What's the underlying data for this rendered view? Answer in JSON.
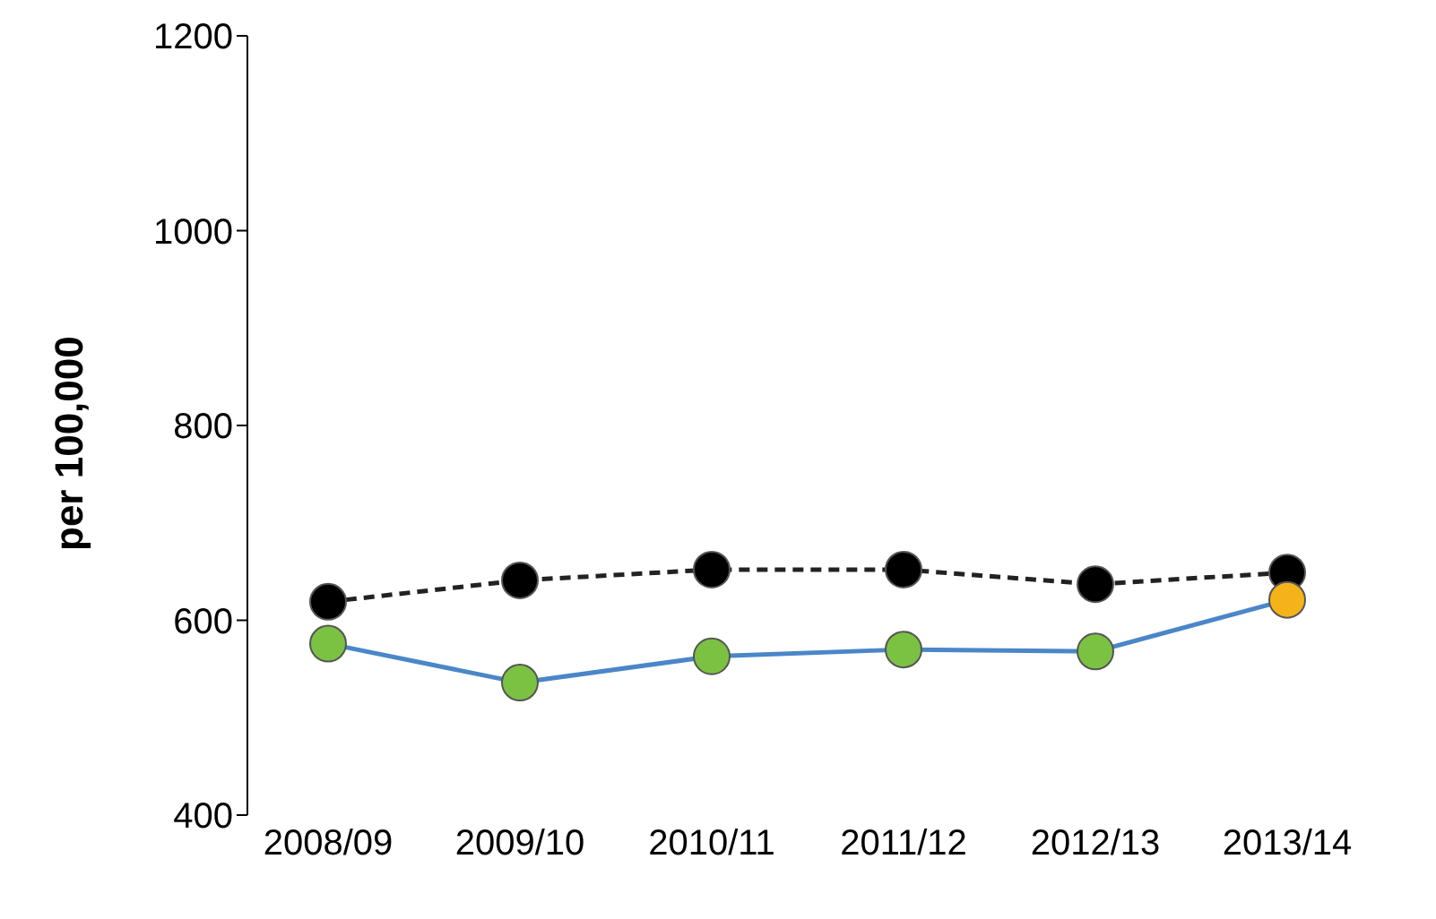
{
  "chart_data": {
    "type": "line",
    "ylabel": "per 100,000",
    "categories": [
      "2008/09",
      "2009/10",
      "2010/11",
      "2011/12",
      "2012/13",
      "2013/14"
    ],
    "ylim": [
      400,
      1200
    ],
    "yticks": [
      400,
      600,
      800,
      1000,
      1200
    ],
    "marker": "circle",
    "series": [
      {
        "color": "#222222",
        "line_style": "dashed",
        "colors": [
          "#000000",
          "#000000",
          "#000000",
          "#000000",
          "#000000",
          "#000000"
        ],
        "values": [
          619,
          641,
          652,
          652,
          637,
          649
        ]
      },
      {
        "color": "#4a86c8",
        "line_style": "solid",
        "colors": [
          "#7cc242",
          "#7cc242",
          "#7cc242",
          "#7cc242",
          "#7cc242",
          "#f5b31a"
        ],
        "values": [
          576,
          536,
          563,
          570,
          568,
          621
        ]
      }
    ]
  }
}
